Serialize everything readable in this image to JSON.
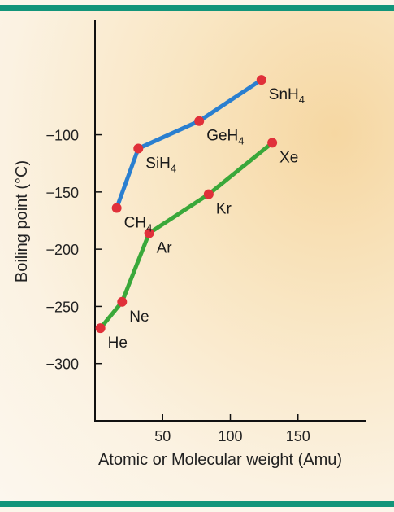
{
  "chart_data": {
    "type": "line",
    "xlabel": "Atomic or Molecular weight (Amu)",
    "ylabel": "Boiling point (°C)",
    "xlim": [
      0,
      200
    ],
    "ylim": [
      -350,
      0
    ],
    "x_ticks": [
      50,
      100,
      150
    ],
    "y_ticks": [
      -100,
      -150,
      -200,
      -250,
      -300
    ],
    "x_tick_labels": [
      "50",
      "100",
      "150"
    ],
    "y_tick_labels": [
      "−100",
      "−150",
      "−200",
      "−250",
      "−300"
    ],
    "grid": false,
    "series": [
      {
        "color": "#2a7fd0",
        "points": [
          {
            "x": 16,
            "y": -164,
            "label": "CH",
            "sub": "4"
          },
          {
            "x": 32,
            "y": -112,
            "label": "SiH",
            "sub": "4"
          },
          {
            "x": 77,
            "y": -88,
            "label": "GeH",
            "sub": "4"
          },
          {
            "x": 123,
            "y": -52,
            "label": "SnH",
            "sub": "4"
          }
        ]
      },
      {
        "color": "#3aa83a",
        "points": [
          {
            "x": 4,
            "y": -269,
            "label": "He",
            "sub": ""
          },
          {
            "x": 20,
            "y": -246,
            "label": "Ne",
            "sub": ""
          },
          {
            "x": 40,
            "y": -186,
            "label": "Ar",
            "sub": ""
          },
          {
            "x": 84,
            "y": -152,
            "label": "Kr",
            "sub": ""
          },
          {
            "x": 131,
            "y": -107,
            "label": "Xe",
            "sub": ""
          }
        ]
      }
    ],
    "marker_color": "#e0303a"
  }
}
